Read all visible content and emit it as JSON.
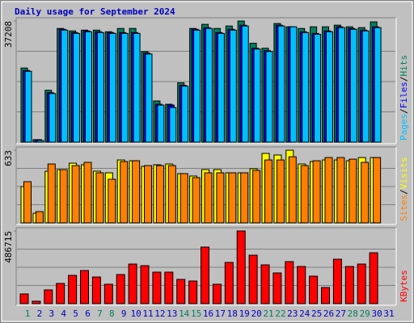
{
  "chart_data": {
    "type": "bar",
    "title": "Daily usage for September 2024",
    "categories": [
      "1",
      "2",
      "3",
      "4",
      "5",
      "6",
      "7",
      "8",
      "9",
      "10",
      "11",
      "12",
      "13",
      "14",
      "15",
      "16",
      "17",
      "18",
      "19",
      "20",
      "21",
      "22",
      "23",
      "24",
      "25",
      "26",
      "27",
      "28",
      "29",
      "30",
      "31"
    ],
    "weekend_categories": [
      0,
      6,
      7,
      13,
      14,
      20,
      21,
      27,
      28
    ],
    "weekend_color": "#00805c",
    "label_color": "#0000c0",
    "separator": "/",
    "panels": [
      {
        "ylim": [
          0,
          37208
        ],
        "yticks": [
          37208
        ],
        "series": [
          {
            "name": "Hits",
            "color": "#00805c",
            "values": [
              22770,
              759,
              15939,
              34914,
              34155,
              34408,
              34408,
              33902,
              34914,
              34914,
              27830,
              12650,
              11638,
              18216,
              34914,
              36179,
              34914,
              35673,
              37208,
              30360,
              28842,
              36432,
              35420,
              34914,
              35420,
              35420,
              35926,
              35420,
              35167,
              36938,
              null
            ]
          },
          {
            "name": "Files",
            "color": "#0000ff",
            "values": [
              22011,
              759,
              15180,
              34661,
              33649,
              34155,
              33902,
              33649,
              33649,
              33649,
              27324,
              11638,
              11385,
              17457,
              34661,
              35167,
              33649,
              34661,
              35926,
              28842,
              28083,
              35926,
              35420,
              33902,
              33396,
              34155,
              35420,
              34914,
              34408,
              35420,
              null
            ]
          },
          {
            "name": "Pages",
            "color": "#00c0ff",
            "values": [
              21758,
              506,
              14927,
              34408,
              33396,
              33902,
              33649,
              33396,
              33396,
              33396,
              27071,
              11385,
              10626,
              17204,
              34408,
              34914,
              33396,
              34408,
              35673,
              28589,
              27830,
              35673,
              35420,
              33649,
              33143,
              33902,
              35167,
              34661,
              34155,
              35167,
              null
            ]
          }
        ]
      },
      {
        "ylim": [
          0,
          633
        ],
        "yticks": [
          633
        ],
        "series": [
          {
            "name": "Visits",
            "color": "#ffff00",
            "values": [
              316,
              84,
              450,
              464,
              520,
              506,
              450,
              436,
              548,
              541,
              492,
              506,
              513,
              429,
              408,
              464,
              464,
              436,
              436,
              471,
              605,
              591,
              633,
              513,
              534,
              548,
              548,
              541,
              569,
              569,
              null
            ]
          },
          {
            "name": "Sites",
            "color": "#ff8000",
            "values": [
              359,
              98,
              513,
              464,
              499,
              527,
              436,
              380,
              534,
              541,
              499,
              499,
              499,
              429,
              394,
              436,
              436,
              436,
              436,
              457,
              548,
              548,
              576,
              499,
              541,
              569,
              569,
              555,
              527,
              569,
              null
            ]
          }
        ]
      },
      {
        "ylim": [
          0,
          486715
        ],
        "yticks": [
          486715
        ],
        "series": [
          {
            "name": "KBytes",
            "color": "#ff0000",
            "values": [
              64896,
              16224,
              91936,
              135200,
              189280,
              221728,
              178464,
              129792,
              194688,
              264992,
              254176,
              210912,
              210912,
              162240,
              151424,
              378560,
              129792,
              275808,
              486715,
              324480,
              259584,
              205504,
              281216,
              248768,
              183872,
              108160,
              297440,
              248768,
              264992,
              340704,
              null
            ]
          }
        ]
      }
    ]
  }
}
